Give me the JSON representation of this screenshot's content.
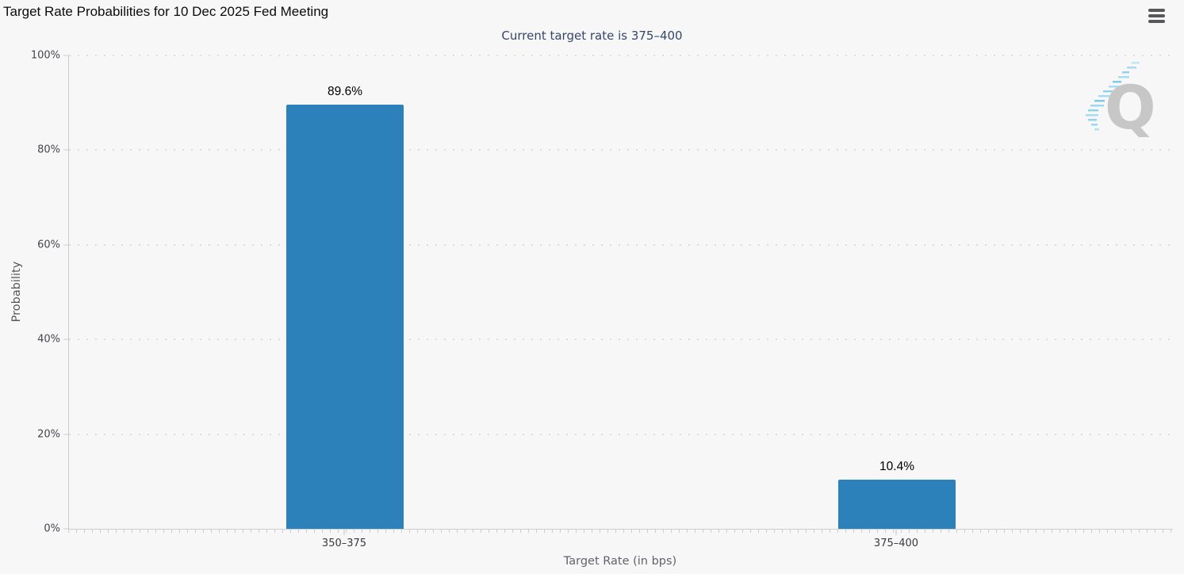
{
  "menu": {
    "icon": "hamburger-menu-icon",
    "tooltip": "Chart context menu"
  },
  "watermark": {
    "letter": "Q"
  },
  "chart_data": {
    "type": "bar",
    "title": "Target Rate Probabilities for 10 Dec 2025 Fed Meeting",
    "subtitle": "Current target rate is 375–400",
    "categories": [
      "350–375",
      "375–400"
    ],
    "values": [
      89.6,
      10.4
    ],
    "value_labels": [
      "89.6%",
      "10.4%"
    ],
    "xlabel": "Target Rate (in bps)",
    "ylabel": "Probability",
    "ylim": [
      0,
      100
    ],
    "yticks": [
      0,
      20,
      40,
      60,
      80,
      100
    ],
    "ytick_labels": [
      "0%",
      "20%",
      "40%",
      "60%",
      "80%",
      "100%"
    ],
    "grid": "horizontal-dotted",
    "legend": "none",
    "bar_color": "#2d81ba",
    "background_color": "#f7f7f7"
  }
}
